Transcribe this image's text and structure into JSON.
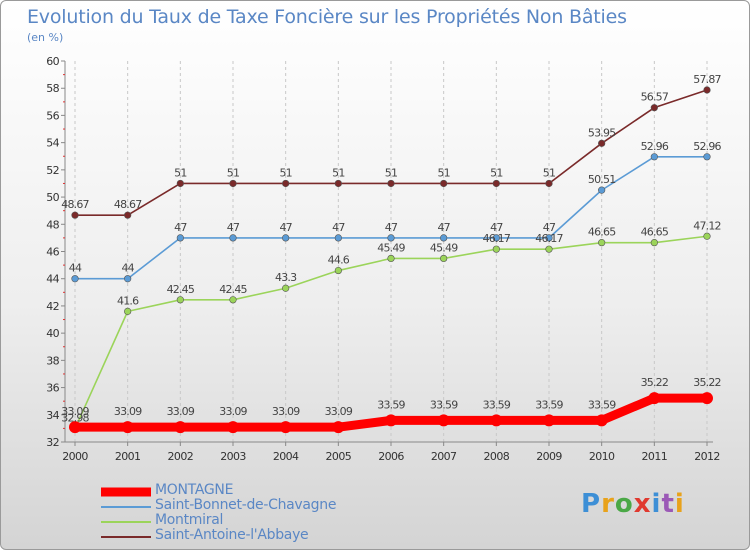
{
  "title": "Evolution du Taux de Taxe Foncière sur les Propriétés Non Bâties",
  "unit_label": "(en %)",
  "logo": {
    "text": "Proxiti",
    "colors": [
      "#3d8fd6",
      "#e8a21b",
      "#4aa846",
      "#e0392f",
      "#3d8fd6",
      "#9b59b6",
      "#e8a21b"
    ]
  },
  "chart_data": {
    "type": "line",
    "title": "Evolution du Taux de Taxe Foncière sur les Propriétés Non Bâties",
    "ylabel": "(en %)",
    "xlabel": "",
    "x": [
      "2000",
      "2001",
      "2002",
      "2003",
      "2004",
      "2005",
      "2006",
      "2007",
      "2008",
      "2009",
      "2010",
      "2011",
      "2012"
    ],
    "ylim": [
      32,
      60
    ],
    "yticks": [
      32,
      34,
      36,
      38,
      40,
      42,
      44,
      46,
      48,
      50,
      52,
      54,
      56,
      58,
      60
    ],
    "grid": "vertical dashed",
    "legend_position": "bottom-left",
    "series": [
      {
        "name": "MONTAGNE",
        "color": "#ff0000",
        "emphasis": "thick",
        "values": [
          33.09,
          33.09,
          33.09,
          33.09,
          33.09,
          33.09,
          33.59,
          33.59,
          33.59,
          33.59,
          33.59,
          35.22,
          35.22
        ],
        "labels": [
          "33.09",
          "33.09",
          "33.09",
          "33.09",
          "33.09",
          "33.09",
          "33.59",
          "33.59",
          "33.59",
          "33.59",
          "33.59",
          "35.22",
          "35.22"
        ]
      },
      {
        "name": "Saint-Bonnet-de-Chavagne",
        "color": "#5b9bd5",
        "values": [
          44,
          44,
          47,
          47,
          47,
          47,
          47,
          47,
          47,
          47,
          50.51,
          52.96,
          52.96
        ],
        "labels": [
          "44",
          "44",
          "47",
          "47",
          "47",
          "47",
          "47",
          "47",
          "47",
          "47",
          "50.51",
          "52.96",
          "52.96"
        ]
      },
      {
        "name": "Montmiral",
        "color": "#9bd45a",
        "values": [
          32.98,
          41.6,
          42.45,
          42.45,
          43.3,
          44.6,
          45.49,
          45.49,
          46.17,
          46.17,
          46.65,
          46.65,
          47.12
        ],
        "labels": [
          "32.98",
          "41.6",
          "42.45",
          "42.45",
          "43.3",
          "44.6",
          "45.49",
          "45.49",
          "46.17",
          "46.17",
          "46.65",
          "46.65",
          "47.12"
        ]
      },
      {
        "name": "Saint-Antoine-l'Abbaye",
        "color": "#7a2a2a",
        "values": [
          48.67,
          48.67,
          51,
          51,
          51,
          51,
          51,
          51,
          51,
          51,
          53.95,
          56.57,
          57.87
        ],
        "labels": [
          "48.67",
          "48.67",
          "51",
          "51",
          "51",
          "51",
          "51",
          "51",
          "51",
          "51",
          "53.95",
          "56.57",
          "57.87"
        ]
      }
    ]
  }
}
